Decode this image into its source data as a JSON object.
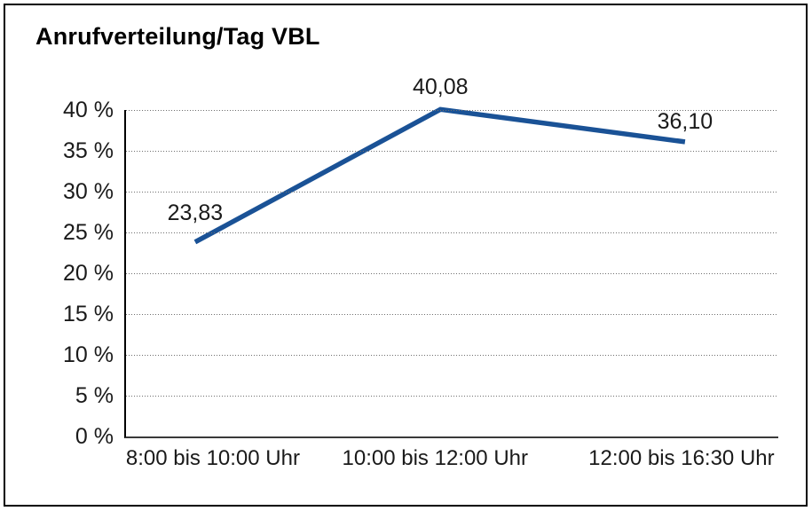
{
  "title": "Anrufverteilung/Tag VBL",
  "chart_data": {
    "type": "line",
    "title": "Anrufverteilung/Tag VBL",
    "categories": [
      "8:00 bis 10:00 Uhr",
      "10:00 bis 12:00 Uhr",
      "12:00 bis 16:30 Uhr"
    ],
    "values": [
      23.83,
      40.08,
      36.1
    ],
    "value_labels": [
      "23,83",
      "40,08",
      "36,10"
    ],
    "xlabel": "",
    "ylabel": "",
    "ylim": [
      0,
      40
    ],
    "ytick_step": 5,
    "ytick_labels": [
      "0 %",
      "5 %",
      "10 %",
      "15 %",
      "20 %",
      "25 %",
      "30 %",
      "35 %",
      "40 %"
    ],
    "grid": "horizontal-dotted",
    "legend": "none",
    "line_color": "#1A5296",
    "text_color": "#1a1a1a",
    "axis_color": "#000000",
    "gridline_color": "#6e6e6e",
    "background_color": "#ffffff",
    "border_color": "#000000"
  }
}
